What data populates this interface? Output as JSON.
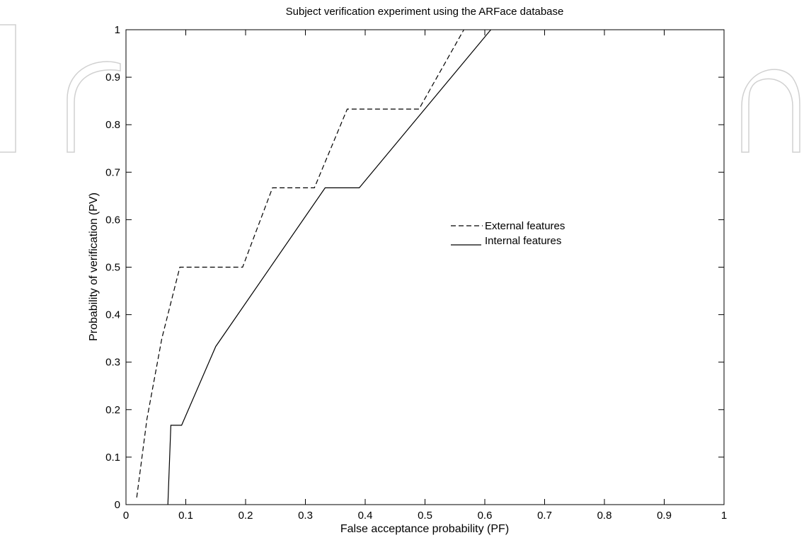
{
  "chart_data": {
    "type": "line",
    "title": "Subject verification experiment using the ARFace database",
    "xlabel": "False acceptance probability (PF)",
    "ylabel": "Probability of verification (PV)",
    "xlim": [
      0,
      1
    ],
    "ylim": [
      0,
      1
    ],
    "xticks": [
      "0",
      "0.1",
      "0.2",
      "0.3",
      "0.4",
      "0.5",
      "0.6",
      "0.7",
      "0.8",
      "0.9",
      "1"
    ],
    "yticks": [
      "0",
      "0.1",
      "0.2",
      "0.3",
      "0.4",
      "0.5",
      "0.6",
      "0.7",
      "0.8",
      "0.9",
      "1"
    ],
    "grid": false,
    "legend_position": "center-right",
    "series": [
      {
        "name": "External features",
        "style": "dashed",
        "x": [
          0.018,
          0.035,
          0.06,
          0.09,
          0.195,
          0.245,
          0.315,
          0.37,
          0.49,
          0.565
        ],
        "y": [
          0.015,
          0.18,
          0.35,
          0.5,
          0.5,
          0.667,
          0.667,
          0.833,
          0.833,
          1.0
        ]
      },
      {
        "name": "Internal features",
        "style": "solid",
        "x": [
          0.07,
          0.075,
          0.093,
          0.15,
          0.333,
          0.39,
          0.61
        ],
        "y": [
          0.0,
          0.167,
          0.167,
          0.333,
          0.667,
          0.667,
          1.0
        ]
      }
    ]
  }
}
